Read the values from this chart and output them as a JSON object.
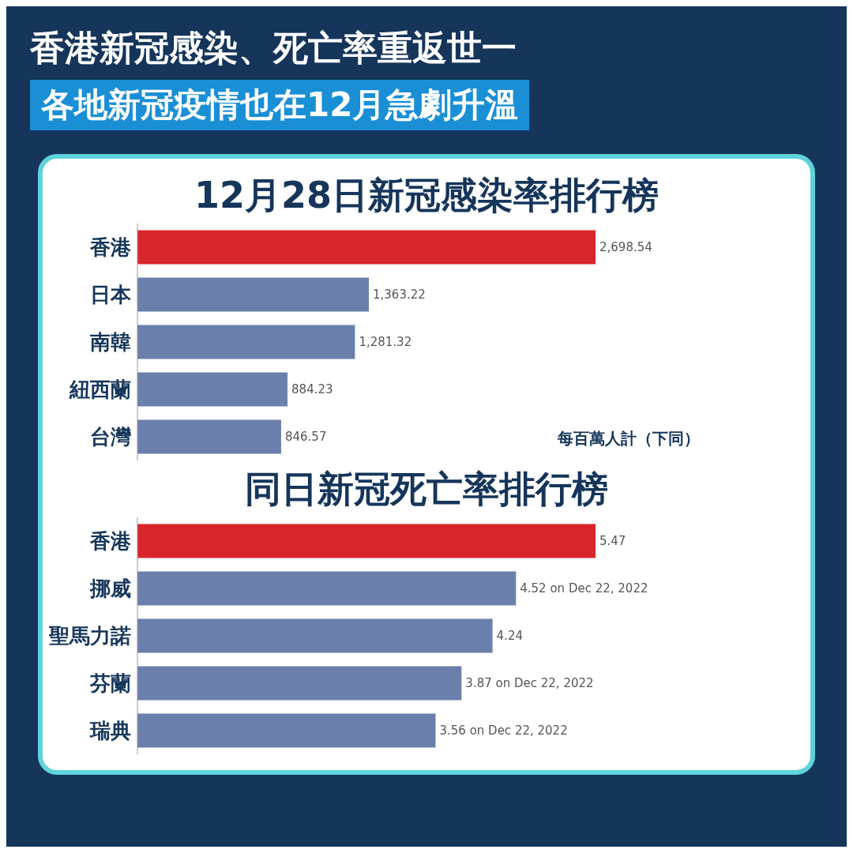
{
  "chart_data": [
    {
      "type": "other",
      "title": "香港新冠感染、死亡率重返世一",
      "subtitle": "各地新冠疫情也在12月急劇升溫"
    },
    {
      "type": "bar",
      "orientation": "horizontal",
      "title": "12月28日新冠感染率排行榜",
      "categories": [
        "香港",
        "日本",
        "南韓",
        "紐西蘭",
        "台灣"
      ],
      "values": [
        2698.54,
        1363.22,
        1281.32,
        884.23,
        846.57
      ],
      "colors": [
        "#d9262c",
        "#6a7fab",
        "#6a7fab",
        "#6a7fab",
        "#6a7fab"
      ],
      "value_labels": [
        "2,698.54",
        "1,363.22",
        "1,281.32",
        "884.23",
        "846.57"
      ],
      "annotations": [
        "每百萬人計（下同）"
      ]
    },
    {
      "type": "bar",
      "orientation": "horizontal",
      "title": "同日新冠死亡率排行榜",
      "categories": [
        "香港",
        "挪威",
        "聖馬力諾",
        "芬蘭",
        "瑞典"
      ],
      "values": [
        5.47,
        4.52,
        4.24,
        3.87,
        3.56
      ],
      "colors": [
        "#d9262c",
        "#6a7fab",
        "#6a7fab",
        "#6a7fab",
        "#6a7fab"
      ],
      "value_labels": [
        "5.47",
        "4.52 on Dec 22, 2022",
        "4.24",
        "3.87 on Dec 22, 2022",
        "3.56 on Dec 22, 2022"
      ]
    }
  ]
}
